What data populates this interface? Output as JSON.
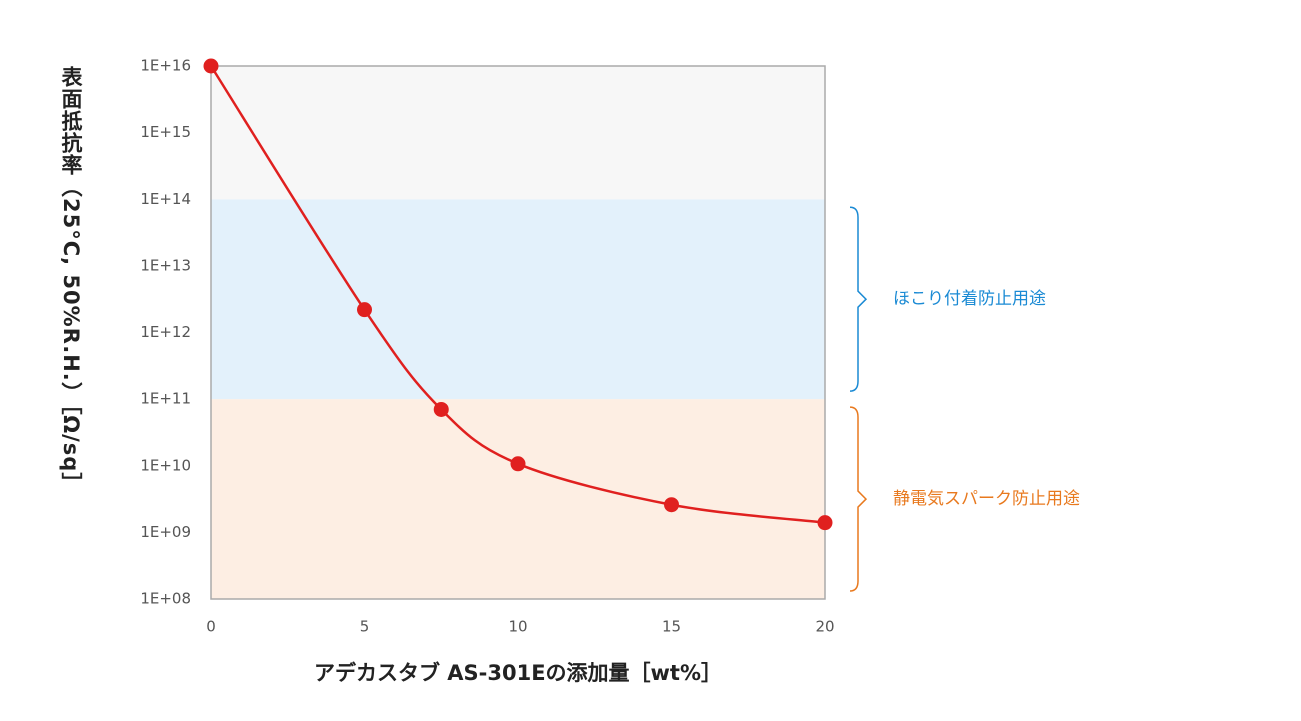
{
  "chart_data": {
    "type": "line",
    "log_y": true,
    "x_label": "アデカスタブ AS-301Eの添加量［wt%］",
    "y_label": "表面抵抗率（25°C, 50%R.H.）［Ω/sq］",
    "x": [
      0,
      5,
      7.5,
      10,
      15,
      20
    ],
    "series": [
      {
        "color": "#e0201f",
        "values": [
          1e+16,
          2200000000000.0,
          70000000000.0,
          10700000000.0,
          2600000000.0,
          1400000000.0
        ]
      }
    ],
    "xlim": [
      0,
      20
    ],
    "xticks": [
      0,
      5,
      10,
      15,
      20
    ],
    "ylim": [
      100000000.0,
      1e+16
    ],
    "yticks": [
      {
        "value": 100000000.0,
        "label": "1E+08"
      },
      {
        "value": 1000000000.0,
        "label": "1E+09"
      },
      {
        "value": 10000000000.0,
        "label": "1E+10"
      },
      {
        "value": 100000000000.0,
        "label": "1E+11"
      },
      {
        "value": 1000000000000.0,
        "label": "1E+12"
      },
      {
        "value": 10000000000000.0,
        "label": "1E+13"
      },
      {
        "value": 100000000000000.0,
        "label": "1E+14"
      },
      {
        "value": 1000000000000000.0,
        "label": "1E+15"
      },
      {
        "value": 1e+16,
        "label": "1E+16"
      }
    ],
    "bands": [
      {
        "from": 100000000.0,
        "to": 100000000000.0,
        "color": "#fdeee3",
        "label": "静電気スパーク防止用途",
        "label_color": "#e8791e"
      },
      {
        "from": 100000000000.0,
        "to": 100000000000000.0,
        "color": "#e3f1fb",
        "label": "ほこり付着防止用途",
        "label_color": "#1a8ad4"
      },
      {
        "from": 100000000000000.0,
        "to": 1e+16,
        "color": "#f7f7f7"
      }
    ]
  }
}
